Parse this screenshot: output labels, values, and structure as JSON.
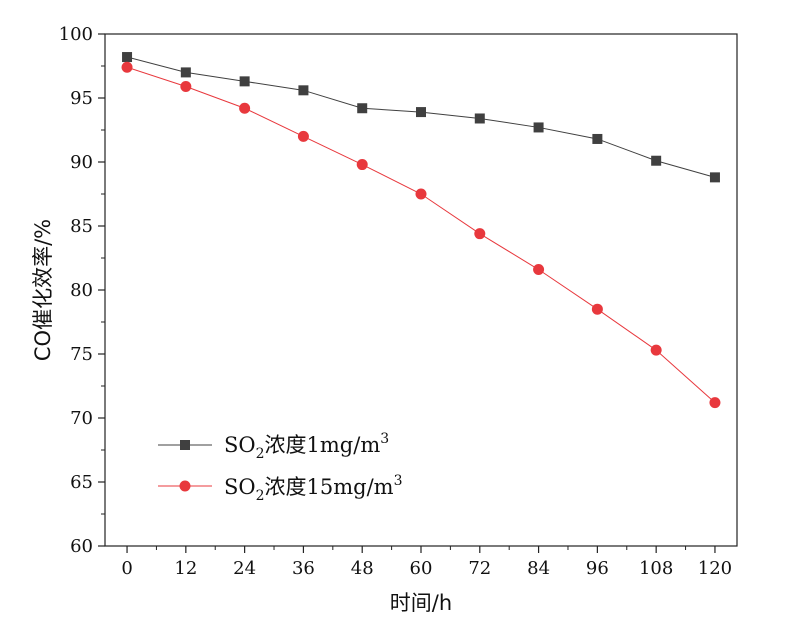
{
  "chart_data": {
    "type": "line",
    "title": "",
    "xlabel": "时间/h",
    "ylabel": "CO催化效率/%",
    "x": [
      0,
      12,
      24,
      36,
      48,
      60,
      72,
      84,
      96,
      108,
      120
    ],
    "xlim": [
      -4.5,
      124.5
    ],
    "ylim": [
      60,
      100
    ],
    "yticks": [
      60,
      65,
      70,
      75,
      80,
      85,
      90,
      95,
      100
    ],
    "grid": false,
    "legend_position": "lower-left",
    "series": [
      {
        "name": "SO2浓度1mg/m3",
        "label_parts": {
          "prefix": "SO",
          "sub": "2",
          "middle": "浓度1mg/m",
          "sup": "3"
        },
        "marker": "square",
        "color": "#404040",
        "values": [
          98.2,
          97.0,
          96.3,
          95.6,
          94.2,
          93.9,
          93.4,
          92.7,
          91.8,
          90.1,
          88.8
        ]
      },
      {
        "name": "SO2浓度15mg/m3",
        "label_parts": {
          "prefix": "SO",
          "sub": "2",
          "middle": "浓度15mg/m",
          "sup": "3"
        },
        "marker": "circle",
        "color": "#e8383d",
        "values": [
          97.4,
          95.9,
          94.2,
          92.0,
          89.8,
          87.5,
          84.4,
          81.6,
          78.5,
          75.3,
          71.2
        ]
      }
    ]
  }
}
